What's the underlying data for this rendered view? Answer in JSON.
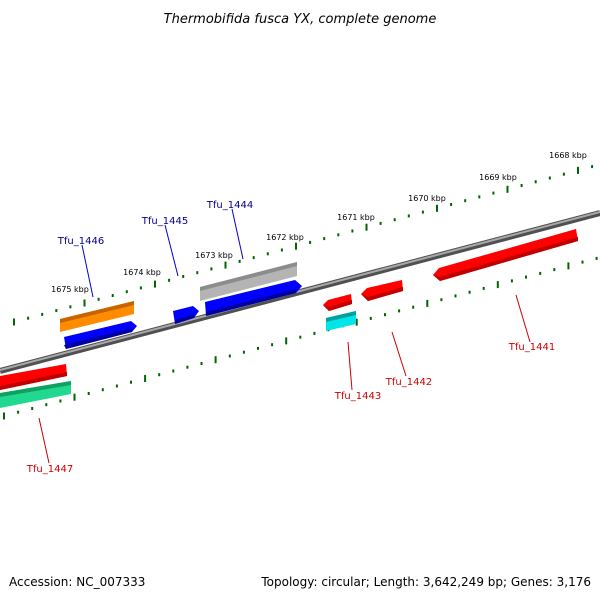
{
  "title": "Thermobifida fusca YX, complete genome",
  "footer": {
    "accession": "Accession: NC_007333",
    "summary": "Topology: circular; Length: 3,642,249 bp; Genes: 3,176"
  },
  "ruler_labels": [
    "1675 kbp",
    "1674 kbp",
    "1673 kbp",
    "1672 kbp",
    "1671 kbp",
    "1670 kbp",
    "1669 kbp",
    "1668 kbp"
  ],
  "genes": [
    {
      "label": "Tfu_1446",
      "color": "#ff8c00",
      "strand": "forward",
      "orientation": "forward"
    },
    {
      "label": "Tfu_1445",
      "color": "#0000ff",
      "strand": "forward",
      "orientation": "forward"
    },
    {
      "label": "Tfu_1444",
      "color": "#0000ff",
      "strand": "forward",
      "orientation": "forward"
    },
    {
      "label": "Tfu_1443",
      "color": "#ff0000",
      "strand": "reverse",
      "orientation": "reverse"
    },
    {
      "label": "Tfu_1442",
      "color": "#ff0000",
      "strand": "reverse",
      "orientation": "reverse"
    },
    {
      "label": "Tfu_1441",
      "color": "#ff0000",
      "strand": "reverse",
      "orientation": "reverse"
    },
    {
      "label": "Tfu_1447",
      "color": "#ff0000",
      "strand": "reverse",
      "orientation": "reverse"
    }
  ],
  "colors": {
    "forward_label": "#00008b",
    "reverse_label": "#cc0000",
    "backbone": "#808080",
    "ruler_tick": "#006400",
    "feature_gray": "#a0a0a0",
    "feature_cyan": "#00e5e5",
    "feature_green": "#20d890"
  }
}
